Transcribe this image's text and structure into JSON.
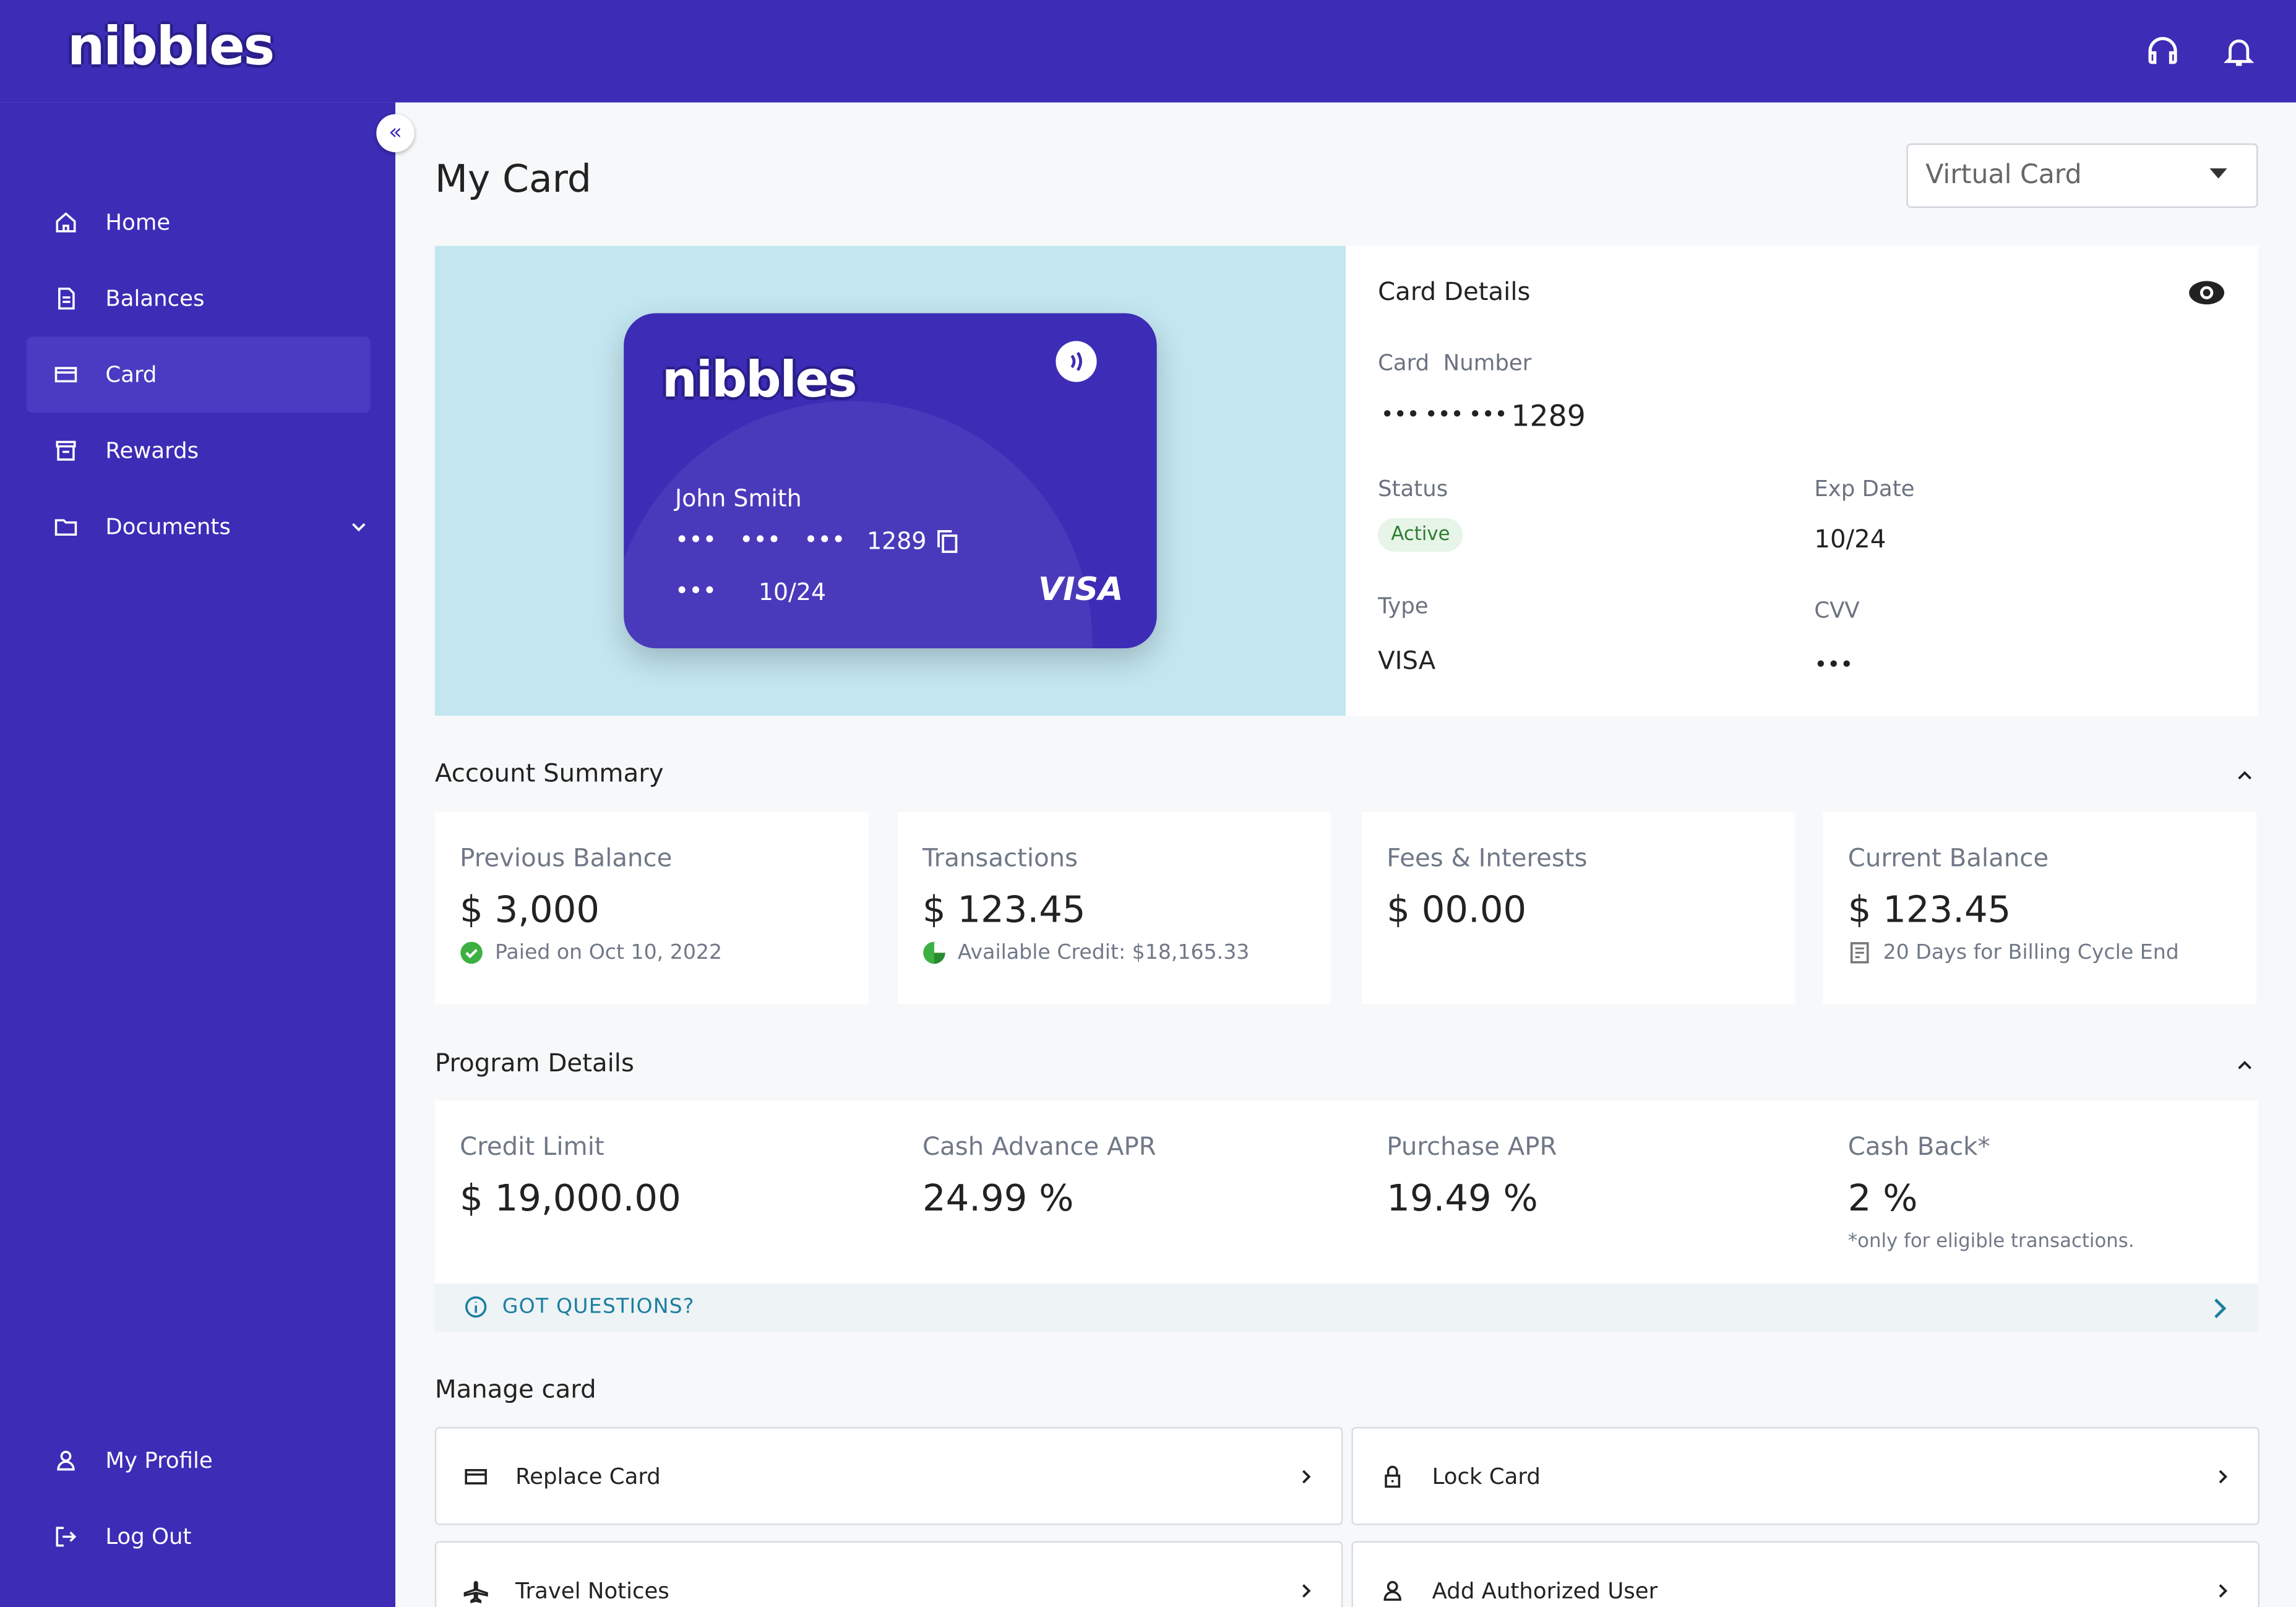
{
  "brand": {
    "logo": "nibbles"
  },
  "sidebar": {
    "nav": [
      "Home",
      "Balances",
      "Card",
      "Rewards",
      "Documents"
    ],
    "footer": [
      "My Profile",
      "Log Out"
    ]
  },
  "header": {
    "title": "My Card",
    "card_select": "Virtual Card"
  },
  "card": {
    "holder": "John Smith",
    "mask": "•••",
    "last4": "1289",
    "expiry": "10/24",
    "network": "VISA"
  },
  "card_details": {
    "title": "Card Details",
    "number_label": "Card  Number",
    "number_mask": "•••",
    "last4": "1289",
    "status_label": "Status",
    "status": "Active",
    "exp_label": "Exp Date",
    "exp": "10/24",
    "type_label": "Type",
    "type": "VISA",
    "cvv_label": "CVV",
    "cvv": "•••"
  },
  "account_summary": {
    "title": "Account Summary",
    "items": [
      {
        "label": "Previous Balance",
        "value": "$ 3,000",
        "note": "Paied on Oct 10, 2022"
      },
      {
        "label": "Transactions",
        "value": "$ 123.45",
        "note": "Available Credit: $18,165.33"
      },
      {
        "label": "Fees & Interests",
        "value": "$ 00.00"
      },
      {
        "label": "Current Balance",
        "value": "$ 123.45",
        "note": "20 Days for Billing Cycle End"
      }
    ]
  },
  "program_details": {
    "title": "Program Details",
    "items": [
      {
        "label": "Credit Limit",
        "value": "$ 19,000.00"
      },
      {
        "label": "Cash Advance APR",
        "value": "24.99 %"
      },
      {
        "label": "Purchase APR",
        "value": "19.49 %"
      },
      {
        "label": "Cash Back*",
        "value": "2 %",
        "note": "*only for eligible transactions."
      }
    ],
    "questions": "GOT QUESTIONS?"
  },
  "manage_card": {
    "title": "Manage card",
    "actions": [
      "Replace Card",
      "Lock Card",
      "Travel Notices",
      "Add Authorized User"
    ]
  }
}
